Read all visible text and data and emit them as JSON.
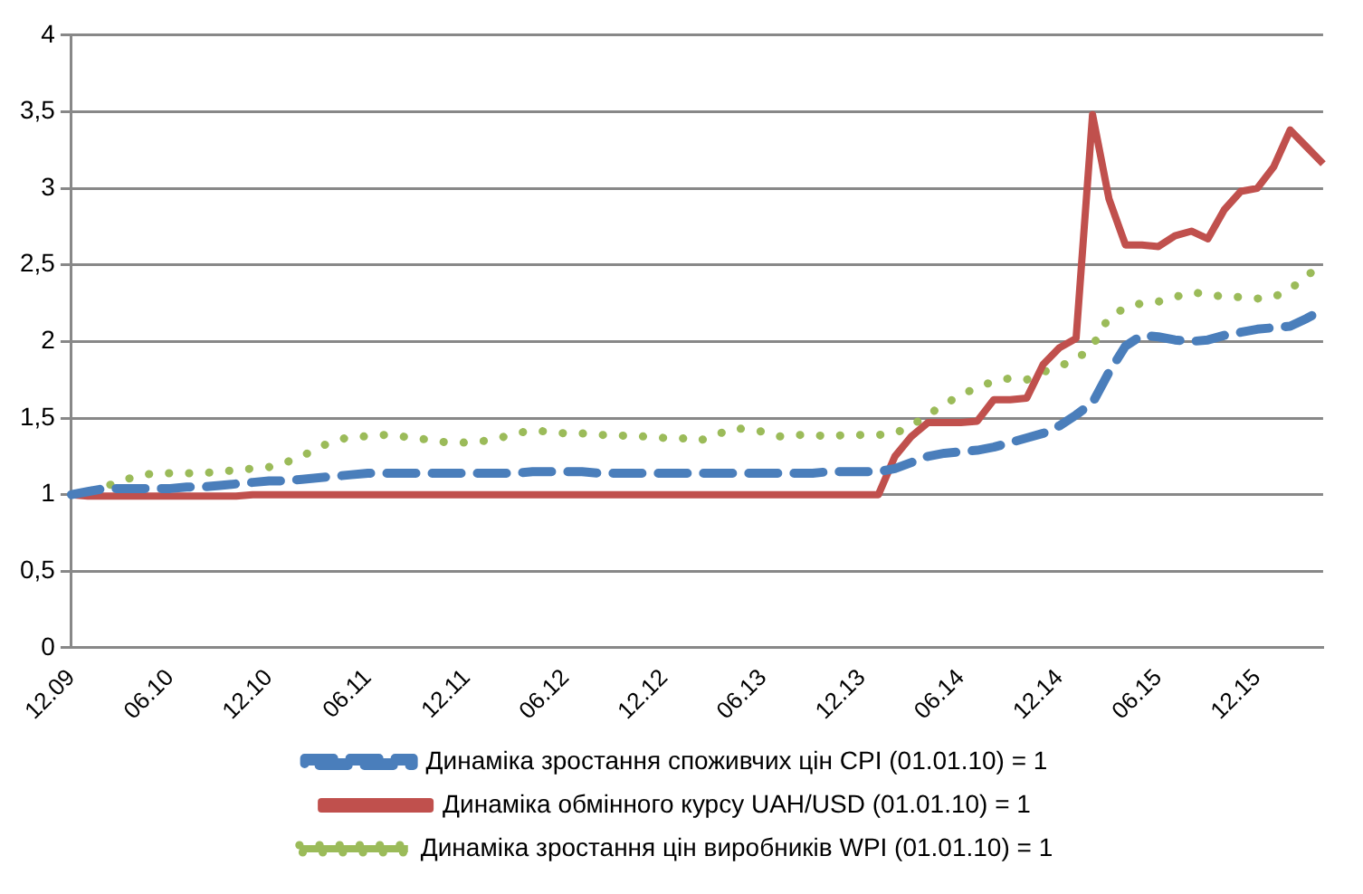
{
  "chart_data": {
    "type": "line",
    "categories": [
      "12.09",
      null,
      null,
      null,
      null,
      null,
      "06.10",
      null,
      null,
      null,
      null,
      null,
      "12.10",
      null,
      null,
      null,
      null,
      null,
      "06.11",
      null,
      null,
      null,
      null,
      null,
      "12.11",
      null,
      null,
      null,
      null,
      null,
      "06.12",
      null,
      null,
      null,
      null,
      null,
      "12.12",
      null,
      null,
      null,
      null,
      null,
      "06.13",
      null,
      null,
      null,
      null,
      null,
      "12.13",
      null,
      null,
      null,
      null,
      null,
      "06.14",
      null,
      null,
      null,
      null,
      null,
      "12.14",
      null,
      null,
      null,
      null,
      null,
      "06.15",
      null,
      null,
      null,
      null,
      null,
      "12.15",
      null,
      null,
      null,
      null
    ],
    "series": [
      {
        "name": "Динаміка зростання споживчих цін CPI (01.01.10) = 1",
        "color": "#4a7ebb",
        "line_style": "dashed",
        "values": [
          1.0,
          1.02,
          1.04,
          1.04,
          1.04,
          1.04,
          1.04,
          1.05,
          1.05,
          1.06,
          1.07,
          1.08,
          1.09,
          1.09,
          1.1,
          1.11,
          1.12,
          1.13,
          1.14,
          1.14,
          1.14,
          1.14,
          1.14,
          1.14,
          1.14,
          1.14,
          1.14,
          1.14,
          1.15,
          1.15,
          1.15,
          1.15,
          1.14,
          1.14,
          1.14,
          1.14,
          1.14,
          1.14,
          1.14,
          1.14,
          1.14,
          1.14,
          1.14,
          1.14,
          1.14,
          1.14,
          1.15,
          1.15,
          1.15,
          1.15,
          1.17,
          1.21,
          1.25,
          1.27,
          1.28,
          1.29,
          1.31,
          1.34,
          1.37,
          1.4,
          1.45,
          1.52,
          1.6,
          1.8,
          1.97,
          2.04,
          2.03,
          2.01,
          2.0,
          2.01,
          2.04,
          2.06,
          2.08,
          2.09,
          2.1,
          2.15,
          2.21
        ]
      },
      {
        "name": "Динаміка обмінного курсу UAH/USD (01.01.10) = 1",
        "color": "#c0504d",
        "line_style": "solid",
        "values": [
          1.0,
          0.99,
          0.99,
          0.99,
          0.99,
          0.99,
          0.99,
          0.99,
          0.99,
          0.99,
          0.99,
          1.0,
          1.0,
          1.0,
          1.0,
          1.0,
          1.0,
          1.0,
          1.0,
          1.0,
          1.0,
          1.0,
          1.0,
          1.0,
          1.0,
          1.0,
          1.0,
          1.0,
          1.0,
          1.0,
          1.0,
          1.0,
          1.0,
          1.0,
          1.0,
          1.0,
          1.0,
          1.0,
          1.0,
          1.0,
          1.0,
          1.0,
          1.0,
          1.0,
          1.0,
          1.0,
          1.0,
          1.0,
          1.0,
          1.0,
          1.25,
          1.38,
          1.47,
          1.47,
          1.47,
          1.48,
          1.62,
          1.62,
          1.63,
          1.85,
          1.96,
          2.02,
          3.48,
          2.93,
          2.63,
          2.63,
          2.62,
          2.69,
          2.72,
          2.67,
          2.86,
          2.98,
          3.0,
          3.14,
          3.38,
          3.27,
          3.16
        ]
      },
      {
        "name": "Динаміка зростання цін виробників WPI (01.01.10) = 1",
        "color": "#9bbb59",
        "line_style": "dotted",
        "values": [
          1.0,
          1.02,
          1.05,
          1.09,
          1.12,
          1.14,
          1.14,
          1.14,
          1.14,
          1.15,
          1.16,
          1.17,
          1.18,
          1.21,
          1.25,
          1.31,
          1.35,
          1.38,
          1.38,
          1.39,
          1.38,
          1.37,
          1.35,
          1.34,
          1.34,
          1.35,
          1.37,
          1.4,
          1.42,
          1.41,
          1.4,
          1.4,
          1.39,
          1.39,
          1.38,
          1.38,
          1.37,
          1.37,
          1.35,
          1.38,
          1.43,
          1.43,
          1.41,
          1.38,
          1.39,
          1.39,
          1.38,
          1.39,
          1.39,
          1.39,
          1.4,
          1.45,
          1.52,
          1.59,
          1.65,
          1.7,
          1.74,
          1.76,
          1.75,
          1.8,
          1.84,
          1.88,
          1.97,
          2.16,
          2.22,
          2.25,
          2.26,
          2.29,
          2.32,
          2.31,
          2.29,
          2.29,
          2.28,
          2.29,
          2.34,
          2.43,
          2.5
        ]
      }
    ],
    "ylim": [
      0,
      4
    ],
    "yticks": [
      0,
      {
        "value": 0.5,
        "label": "0,5"
      },
      1,
      {
        "value": 1.5,
        "label": "1,5"
      },
      2,
      {
        "value": 2.5,
        "label": "2,5"
      },
      3,
      {
        "value": 3.5,
        "label": "3,5"
      },
      4
    ],
    "grid": "y",
    "legend": "bottom",
    "marker": "none"
  }
}
